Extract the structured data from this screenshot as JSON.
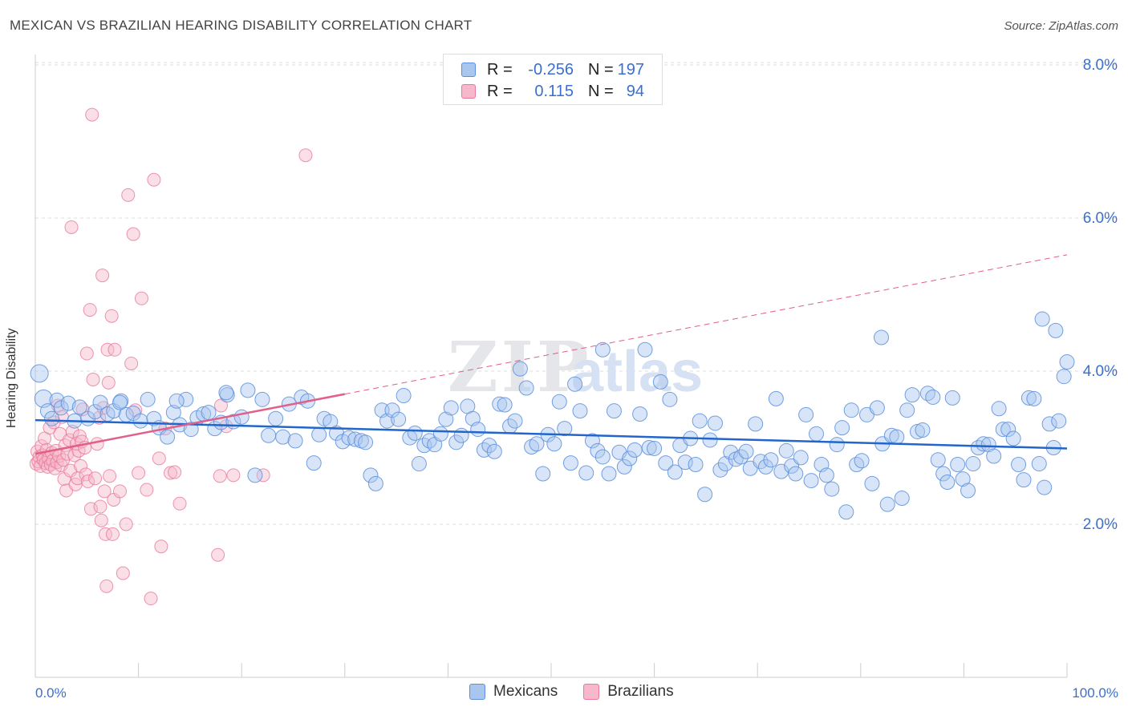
{
  "title": "MEXICAN VS BRAZILIAN HEARING DISABILITY CORRELATION CHART",
  "source": "Source: ZipAtlas.com",
  "watermark": {
    "zip": "ZIP",
    "atlas": "atlas"
  },
  "legend": {
    "rows": [
      {
        "r_label": "R =",
        "r_value": "-0.256",
        "n_label": "N =",
        "n_value": "197"
      },
      {
        "r_label": "R =",
        "r_value": "0.115",
        "n_label": "N =",
        "n_value": "94"
      }
    ]
  },
  "colors": {
    "mexicans_fill": "#a9c6ef",
    "mexicans_stroke": "#5b8fdc",
    "mexicans_line": "#2266cc",
    "brazilians_fill": "#f6b8ca",
    "brazilians_stroke": "#e8799b",
    "brazilians_line": "#e0608a",
    "axis_text": "#3a6fd0",
    "grid": "#dddddd"
  },
  "chart_data": {
    "type": "scatter",
    "title": "MEXICAN VS BRAZILIAN HEARING DISABILITY CORRELATION CHART",
    "xlabel": "",
    "ylabel": "Hearing Disability",
    "xlim": [
      0,
      100
    ],
    "ylim": [
      0,
      8.0
    ],
    "x_tick_labels": [
      "0.0%",
      "100.0%"
    ],
    "y_ticks": [
      2.0,
      4.0,
      6.0,
      8.0
    ],
    "y_tick_labels": [
      "2.0%",
      "4.0%",
      "6.0%",
      "8.0%"
    ],
    "grid": true,
    "legend_position": "bottom-center",
    "series": [
      {
        "name": "Mexicans",
        "r": -0.256,
        "n": 197,
        "trend": {
          "x": [
            0,
            100
          ],
          "y": [
            3.36,
            2.99
          ]
        },
        "points": [
          [
            0.4,
            3.97
          ],
          [
            0.8,
            3.64
          ],
          [
            1.2,
            3.48
          ],
          [
            1.6,
            3.38
          ],
          [
            2.1,
            3.62
          ],
          [
            2.5,
            3.52
          ],
          [
            3.2,
            3.58
          ],
          [
            3.8,
            3.35
          ],
          [
            4.3,
            3.53
          ],
          [
            5.1,
            3.38
          ],
          [
            5.8,
            3.47
          ],
          [
            6.3,
            3.59
          ],
          [
            7.0,
            3.44
          ],
          [
            7.6,
            3.48
          ],
          [
            8.3,
            3.61
          ],
          [
            8.8,
            3.43
          ],
          [
            9.5,
            3.45
          ],
          [
            10.2,
            3.35
          ],
          [
            10.9,
            3.63
          ],
          [
            11.5,
            3.38
          ],
          [
            12.0,
            3.26
          ],
          [
            12.8,
            3.14
          ],
          [
            13.4,
            3.46
          ],
          [
            14.0,
            3.3
          ],
          [
            14.6,
            3.63
          ],
          [
            15.1,
            3.24
          ],
          [
            15.7,
            3.39
          ],
          [
            16.3,
            3.44
          ],
          [
            16.8,
            3.46
          ],
          [
            17.4,
            3.25
          ],
          [
            18.0,
            3.33
          ],
          [
            18.6,
            3.69
          ],
          [
            19.2,
            3.34
          ],
          [
            20.0,
            3.4
          ],
          [
            20.6,
            3.75
          ],
          [
            21.3,
            2.64
          ],
          [
            22.0,
            3.63
          ],
          [
            22.6,
            3.16
          ],
          [
            23.3,
            3.38
          ],
          [
            24.0,
            3.14
          ],
          [
            24.6,
            3.57
          ],
          [
            25.2,
            3.09
          ],
          [
            25.8,
            3.66
          ],
          [
            26.4,
            3.61
          ],
          [
            27.0,
            2.8
          ],
          [
            27.5,
            3.17
          ],
          [
            28.0,
            3.38
          ],
          [
            28.6,
            3.34
          ],
          [
            29.2,
            3.19
          ],
          [
            29.8,
            3.08
          ],
          [
            30.4,
            3.13
          ],
          [
            31.0,
            3.11
          ],
          [
            31.6,
            3.09
          ],
          [
            32.0,
            3.07
          ],
          [
            32.5,
            2.64
          ],
          [
            33.0,
            2.53
          ],
          [
            33.6,
            3.49
          ],
          [
            34.1,
            3.35
          ],
          [
            34.6,
            3.49
          ],
          [
            35.2,
            3.37
          ],
          [
            35.7,
            3.68
          ],
          [
            36.3,
            3.13
          ],
          [
            36.8,
            3.19
          ],
          [
            37.2,
            2.79
          ],
          [
            37.7,
            3.03
          ],
          [
            38.2,
            3.09
          ],
          [
            38.7,
            3.04
          ],
          [
            39.3,
            3.18
          ],
          [
            39.8,
            3.37
          ],
          [
            40.3,
            3.52
          ],
          [
            40.8,
            3.07
          ],
          [
            41.3,
            3.16
          ],
          [
            41.9,
            3.54
          ],
          [
            42.4,
            3.38
          ],
          [
            42.9,
            3.24
          ],
          [
            43.5,
            2.97
          ],
          [
            44.0,
            3.03
          ],
          [
            44.5,
            2.95
          ],
          [
            45.0,
            3.57
          ],
          [
            45.5,
            3.56
          ],
          [
            46.0,
            3.28
          ],
          [
            46.5,
            3.35
          ],
          [
            47.0,
            4.03
          ],
          [
            47.6,
            3.78
          ],
          [
            48.1,
            3.01
          ],
          [
            48.6,
            3.05
          ],
          [
            49.2,
            2.66
          ],
          [
            49.7,
            3.17
          ],
          [
            50.3,
            3.05
          ],
          [
            50.8,
            3.6
          ],
          [
            51.3,
            3.25
          ],
          [
            51.9,
            2.8
          ],
          [
            52.3,
            3.83
          ],
          [
            52.8,
            3.48
          ],
          [
            53.4,
            2.67
          ],
          [
            54.0,
            3.09
          ],
          [
            54.5,
            2.96
          ],
          [
            55.0,
            2.88
          ],
          [
            55.6,
            2.66
          ],
          [
            56.1,
            3.48
          ],
          [
            56.6,
            2.94
          ],
          [
            57.1,
            2.75
          ],
          [
            57.6,
            2.86
          ],
          [
            58.1,
            2.97
          ],
          [
            58.6,
            3.44
          ],
          [
            59.1,
            4.28
          ],
          [
            59.5,
            3.0
          ],
          [
            60.0,
            2.99
          ],
          [
            60.6,
            3.86
          ],
          [
            61.1,
            2.8
          ],
          [
            61.5,
            3.63
          ],
          [
            62.0,
            2.68
          ],
          [
            62.5,
            3.03
          ],
          [
            63.0,
            2.81
          ],
          [
            63.5,
            3.12
          ],
          [
            64.0,
            2.78
          ],
          [
            64.4,
            3.35
          ],
          [
            64.9,
            2.39
          ],
          [
            65.4,
            3.1
          ],
          [
            65.9,
            3.32
          ],
          [
            66.4,
            2.71
          ],
          [
            66.9,
            2.79
          ],
          [
            67.4,
            2.94
          ],
          [
            67.9,
            2.85
          ],
          [
            68.4,
            2.88
          ],
          [
            68.9,
            2.95
          ],
          [
            69.3,
            2.73
          ],
          [
            69.8,
            3.31
          ],
          [
            70.3,
            2.82
          ],
          [
            70.8,
            2.75
          ],
          [
            71.3,
            2.84
          ],
          [
            71.8,
            3.64
          ],
          [
            72.3,
            2.69
          ],
          [
            72.8,
            2.96
          ],
          [
            73.3,
            2.76
          ],
          [
            73.7,
            2.66
          ],
          [
            74.2,
            2.87
          ],
          [
            74.7,
            3.43
          ],
          [
            75.2,
            2.57
          ],
          [
            75.7,
            3.18
          ],
          [
            76.2,
            2.78
          ],
          [
            76.7,
            2.64
          ],
          [
            77.2,
            2.46
          ],
          [
            77.7,
            3.04
          ],
          [
            78.2,
            3.26
          ],
          [
            78.6,
            2.16
          ],
          [
            79.1,
            3.49
          ],
          [
            79.6,
            2.78
          ],
          [
            80.1,
            2.83
          ],
          [
            80.6,
            3.43
          ],
          [
            81.1,
            2.53
          ],
          [
            81.6,
            3.52
          ],
          [
            82.1,
            3.05
          ],
          [
            82.6,
            2.26
          ],
          [
            83.0,
            3.16
          ],
          [
            83.5,
            3.14
          ],
          [
            84.0,
            2.34
          ],
          [
            84.5,
            3.49
          ],
          [
            85.0,
            3.69
          ],
          [
            85.5,
            3.21
          ],
          [
            86.0,
            3.23
          ],
          [
            86.5,
            3.71
          ],
          [
            87.0,
            3.66
          ],
          [
            87.5,
            2.84
          ],
          [
            88.0,
            2.66
          ],
          [
            88.4,
            2.55
          ],
          [
            88.9,
            3.65
          ],
          [
            89.4,
            2.78
          ],
          [
            89.9,
            2.59
          ],
          [
            90.4,
            2.44
          ],
          [
            90.9,
            2.79
          ],
          [
            91.4,
            3.0
          ],
          [
            91.9,
            3.05
          ],
          [
            92.4,
            3.04
          ],
          [
            92.9,
            2.89
          ],
          [
            93.4,
            3.51
          ],
          [
            93.8,
            3.24
          ],
          [
            94.3,
            3.24
          ],
          [
            94.8,
            3.12
          ],
          [
            95.3,
            2.78
          ],
          [
            95.8,
            2.58
          ],
          [
            96.3,
            3.65
          ],
          [
            96.8,
            3.64
          ],
          [
            97.3,
            2.79
          ],
          [
            97.8,
            2.48
          ],
          [
            98.3,
            3.31
          ],
          [
            98.7,
            3.0
          ],
          [
            99.2,
            3.35
          ],
          [
            99.7,
            3.93
          ],
          [
            100.0,
            4.12
          ],
          [
            98.9,
            4.53
          ],
          [
            97.6,
            4.68
          ],
          [
            82.0,
            4.44
          ],
          [
            55.0,
            4.28
          ],
          [
            18.5,
            3.72
          ],
          [
            13.7,
            3.61
          ],
          [
            8.2,
            3.59
          ]
        ]
      },
      {
        "name": "Brazilians",
        "r": 0.115,
        "n": 94,
        "trend": {
          "x": [
            0,
            30
          ],
          "y": [
            2.92,
            3.7
          ]
        },
        "trend_extended": {
          "x": [
            30,
            100
          ],
          "y": [
            3.7,
            5.52
          ]
        },
        "points": [
          [
            0.1,
            2.79
          ],
          [
            0.2,
            2.95
          ],
          [
            0.3,
            2.82
          ],
          [
            0.4,
            2.88
          ],
          [
            0.5,
            2.76
          ],
          [
            0.6,
            3.02
          ],
          [
            0.7,
            2.9
          ],
          [
            0.8,
            2.84
          ],
          [
            0.9,
            3.12
          ],
          [
            1.0,
            2.8
          ],
          [
            1.1,
            2.97
          ],
          [
            1.2,
            2.75
          ],
          [
            1.3,
            2.86
          ],
          [
            1.4,
            3.26
          ],
          [
            1.5,
            2.78
          ],
          [
            1.6,
            2.93
          ],
          [
            1.7,
            2.83
          ],
          [
            1.8,
            3.33
          ],
          [
            1.9,
            2.73
          ],
          [
            2.0,
            2.96
          ],
          [
            2.1,
            2.81
          ],
          [
            2.2,
            3.55
          ],
          [
            2.3,
            2.89
          ],
          [
            2.4,
            3.18
          ],
          [
            2.5,
            2.77
          ],
          [
            2.6,
            3.4
          ],
          [
            2.7,
            2.84
          ],
          [
            2.8,
            2.59
          ],
          [
            2.9,
            3.03
          ],
          [
            3.0,
            2.44
          ],
          [
            3.1,
            2.92
          ],
          [
            3.3,
            3.1
          ],
          [
            3.4,
            2.7
          ],
          [
            3.5,
            5.88
          ],
          [
            3.6,
            3.21
          ],
          [
            3.8,
            2.9
          ],
          [
            3.9,
            2.52
          ],
          [
            4.0,
            3.05
          ],
          [
            4.1,
            2.6
          ],
          [
            4.2,
            2.96
          ],
          [
            4.3,
            3.15
          ],
          [
            4.4,
            2.76
          ],
          [
            4.5,
            3.08
          ],
          [
            4.6,
            3.5
          ],
          [
            4.8,
            3.0
          ],
          [
            4.9,
            2.65
          ],
          [
            5.0,
            4.23
          ],
          [
            5.1,
            2.56
          ],
          [
            5.3,
            4.8
          ],
          [
            5.4,
            2.2
          ],
          [
            5.5,
            7.35
          ],
          [
            5.6,
            3.89
          ],
          [
            5.8,
            2.6
          ],
          [
            6.0,
            3.05
          ],
          [
            6.2,
            3.39
          ],
          [
            6.3,
            2.23
          ],
          [
            6.4,
            2.05
          ],
          [
            6.5,
            5.25
          ],
          [
            6.6,
            3.52
          ],
          [
            6.7,
            2.43
          ],
          [
            6.8,
            1.87
          ],
          [
            6.9,
            1.19
          ],
          [
            7.0,
            4.28
          ],
          [
            7.1,
            3.85
          ],
          [
            7.2,
            2.63
          ],
          [
            7.4,
            4.72
          ],
          [
            7.5,
            1.87
          ],
          [
            7.6,
            2.32
          ],
          [
            7.7,
            4.28
          ],
          [
            8.2,
            2.43
          ],
          [
            8.5,
            1.36
          ],
          [
            8.8,
            2.0
          ],
          [
            9.0,
            6.3
          ],
          [
            9.3,
            4.1
          ],
          [
            9.5,
            5.79
          ],
          [
            9.7,
            3.49
          ],
          [
            10.0,
            2.67
          ],
          [
            10.3,
            4.95
          ],
          [
            10.8,
            2.45
          ],
          [
            11.2,
            1.03
          ],
          [
            11.5,
            6.5
          ],
          [
            12.0,
            2.86
          ],
          [
            12.2,
            1.71
          ],
          [
            12.6,
            3.25
          ],
          [
            13.1,
            2.67
          ],
          [
            13.5,
            2.68
          ],
          [
            14.0,
            2.27
          ],
          [
            17.7,
            1.6
          ],
          [
            17.9,
            2.63
          ],
          [
            18.0,
            3.55
          ],
          [
            18.5,
            3.28
          ],
          [
            19.2,
            2.64
          ],
          [
            22.1,
            2.64
          ],
          [
            26.2,
            6.82
          ]
        ]
      }
    ]
  },
  "bottom_legend": [
    "Mexicans",
    "Brazilians"
  ]
}
